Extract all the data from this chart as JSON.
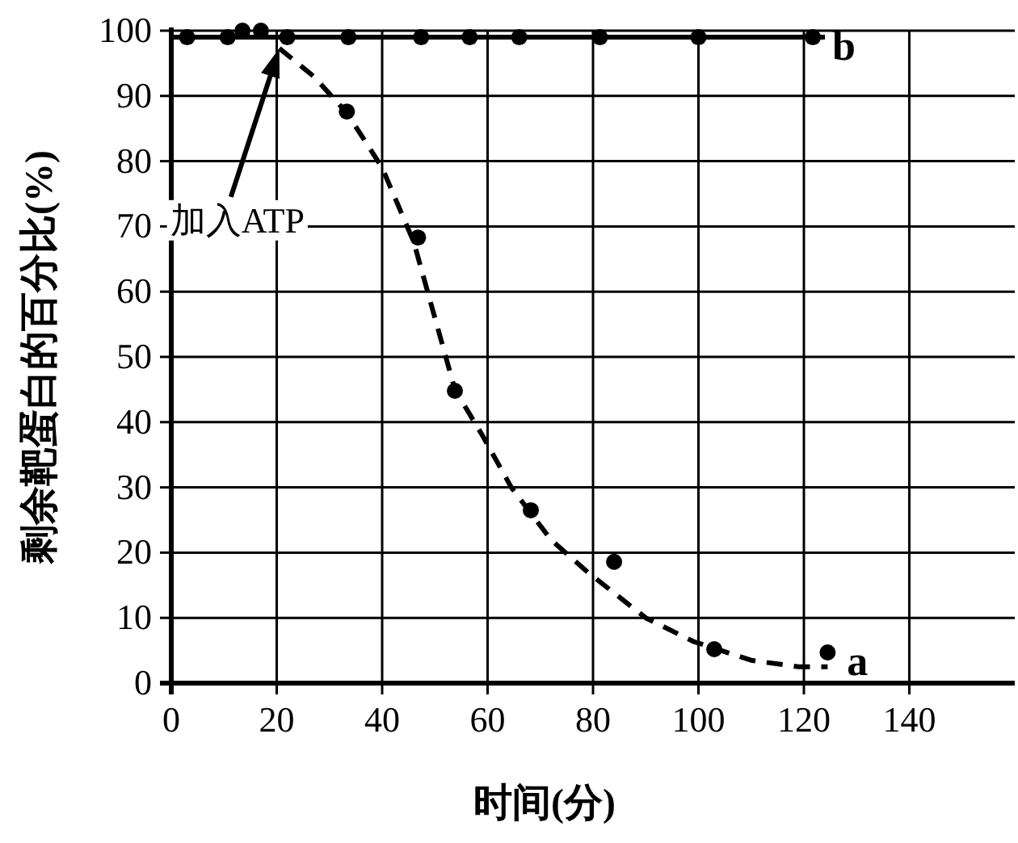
{
  "chart_data": {
    "type": "scatter",
    "xlabel": "时间(分)",
    "ylabel": "剩余靶蛋白的百分比(%)",
    "xlim": [
      0,
      160
    ],
    "ylim": [
      0,
      100
    ],
    "xticks": [
      0,
      20,
      40,
      60,
      80,
      100,
      120,
      140
    ],
    "yticks": [
      0,
      10,
      20,
      30,
      40,
      50,
      60,
      70,
      80,
      90,
      100
    ],
    "grid": true,
    "legend": "right",
    "marker": "circle",
    "annotations": [
      "加入ATP"
    ],
    "series": [
      {
        "type": "line",
        "line_style": "solid",
        "marker": "none",
        "color": "#000000",
        "x": [
          0,
          124
        ],
        "values": [
          99,
          99
        ]
      },
      {
        "type": "line",
        "line_style": "dashed",
        "marker": "none",
        "color": "#000000",
        "x": [
          20.5,
          27,
          33.3,
          40,
          46,
          50,
          53.8,
          59,
          64.5,
          72,
          79,
          90,
          99,
          110,
          119,
          124.5
        ],
        "values": [
          97.3,
          93,
          87.4,
          79,
          67.6,
          56,
          45,
          38,
          30,
          22,
          17,
          10,
          6.4,
          3.5,
          2.5,
          2.5
        ]
      },
      {
        "name": "b",
        "color": "#000000",
        "x": [
          3,
          10.7,
          13.5,
          17,
          22,
          33.6,
          47.4,
          56.6,
          66,
          81.3,
          100,
          121.7
        ],
        "values": [
          99,
          99,
          100,
          100,
          99,
          99,
          99,
          99,
          99,
          99,
          99,
          99
        ]
      },
      {
        "name": "a",
        "color": "#000000",
        "x": [
          33.3,
          46.8,
          53.8,
          68.2,
          84,
          103,
          124.5
        ],
        "values": [
          87.6,
          68.3,
          44.8,
          26.5,
          18.6,
          5.2,
          4.7
        ]
      }
    ]
  }
}
